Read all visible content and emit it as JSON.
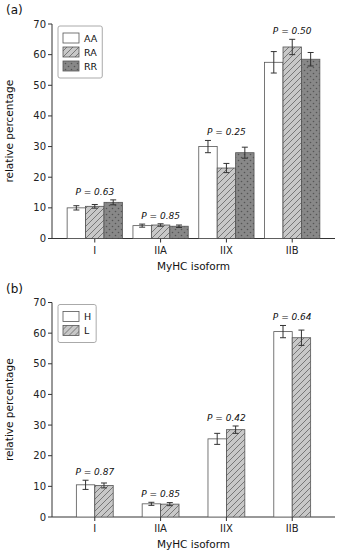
{
  "chart_data": [
    {
      "type": "bar",
      "title": "(a)",
      "xlabel": "MyHC isoform",
      "ylabel": "relative percentage",
      "categories": [
        "I",
        "IIA",
        "IIX",
        "IIB"
      ],
      "series": [
        {
          "name": "AA",
          "color": "white",
          "values": [
            10.0,
            4.2,
            30.0,
            57.5
          ],
          "errors": [
            0.7,
            0.5,
            2.0,
            3.5
          ]
        },
        {
          "name": "RA",
          "color": "#c8c8c8",
          "values": [
            10.5,
            4.4,
            23.0,
            62.5
          ],
          "errors": [
            0.6,
            0.4,
            1.5,
            2.5
          ]
        },
        {
          "name": "RR",
          "color": "#888888",
          "values": [
            11.8,
            4.0,
            28.0,
            58.5
          ],
          "errors": [
            0.8,
            0.4,
            1.8,
            2.2
          ]
        }
      ],
      "annotations": [
        "P = 0.63",
        "P = 0.85",
        "P = 0.25",
        "P = 0.50"
      ],
      "ylim": [
        0,
        70
      ],
      "yticks": [
        0,
        10,
        20,
        30,
        40,
        50,
        60,
        70
      ],
      "legend": "upper left"
    },
    {
      "type": "bar",
      "title": "(b)",
      "xlabel": "MyHC isoform",
      "ylabel": "relative percentage",
      "categories": [
        "I",
        "IIA",
        "IIX",
        "IIB"
      ],
      "series": [
        {
          "name": "H",
          "color": "white",
          "values": [
            10.5,
            4.3,
            25.5,
            60.5
          ],
          "errors": [
            1.5,
            0.5,
            1.8,
            2.0
          ]
        },
        {
          "name": "L",
          "color": "#c8c8c8",
          "values": [
            10.3,
            4.2,
            28.5,
            58.5
          ],
          "errors": [
            0.8,
            0.5,
            1.2,
            2.5
          ]
        }
      ],
      "annotations": [
        "P = 0.87",
        "P = 0.85",
        "P = 0.42",
        "P = 0.64"
      ],
      "ylim": [
        0,
        70
      ],
      "yticks": [
        0,
        10,
        20,
        30,
        40,
        50,
        60,
        70
      ],
      "legend": "upper left"
    }
  ]
}
